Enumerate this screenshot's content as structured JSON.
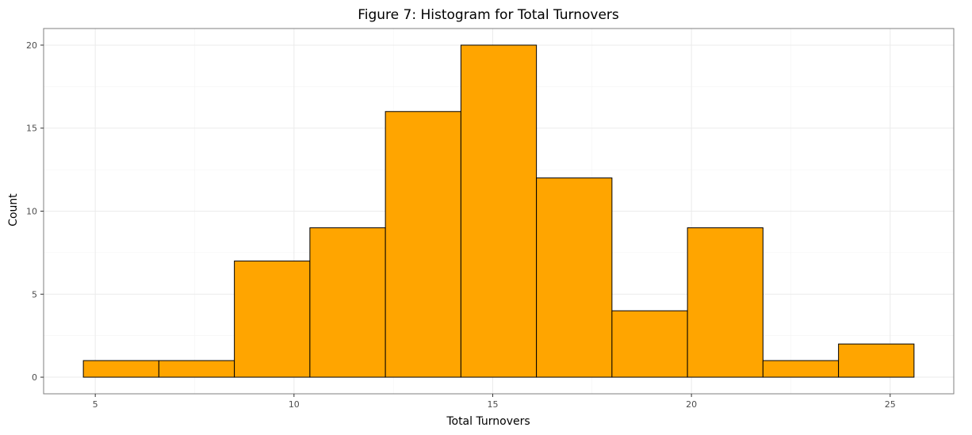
{
  "chart_data": {
    "type": "bar",
    "subtype": "histogram",
    "title": "Figure 7: Histogram for Total Turnovers",
    "xlabel": "Total Turnovers",
    "ylabel": "Count",
    "bins": [
      {
        "x0": 4.7,
        "x1": 6.6,
        "count": 1
      },
      {
        "x0": 6.6,
        "x1": 8.5,
        "count": 1
      },
      {
        "x0": 8.5,
        "x1": 10.4,
        "count": 7
      },
      {
        "x0": 10.4,
        "x1": 12.3,
        "count": 9
      },
      {
        "x0": 12.3,
        "x1": 14.2,
        "count": 16
      },
      {
        "x0": 14.2,
        "x1": 16.1,
        "count": 20
      },
      {
        "x0": 16.1,
        "x1": 18.0,
        "count": 12
      },
      {
        "x0": 18.0,
        "x1": 19.9,
        "count": 4
      },
      {
        "x0": 19.9,
        "x1": 21.8,
        "count": 9
      },
      {
        "x0": 21.8,
        "x1": 23.7,
        "count": 1
      },
      {
        "x0": 23.7,
        "x1": 25.6,
        "count": 2
      }
    ],
    "xlim": [
      3.7,
      26.6
    ],
    "ylim": [
      -1,
      21
    ],
    "xticks": [
      5,
      10,
      15,
      20,
      25
    ],
    "xtick_labels": [
      "5",
      "10",
      "15",
      "20",
      "25"
    ],
    "yticks": [
      0,
      5,
      10,
      15,
      20
    ],
    "ytick_labels": [
      "0",
      "5",
      "10",
      "15",
      "20"
    ],
    "grid": true,
    "bar_fill": "#FFA500",
    "bar_stroke": "#000000",
    "panel_border": "#7f7f7f",
    "grid_color": "#ebebeb"
  }
}
